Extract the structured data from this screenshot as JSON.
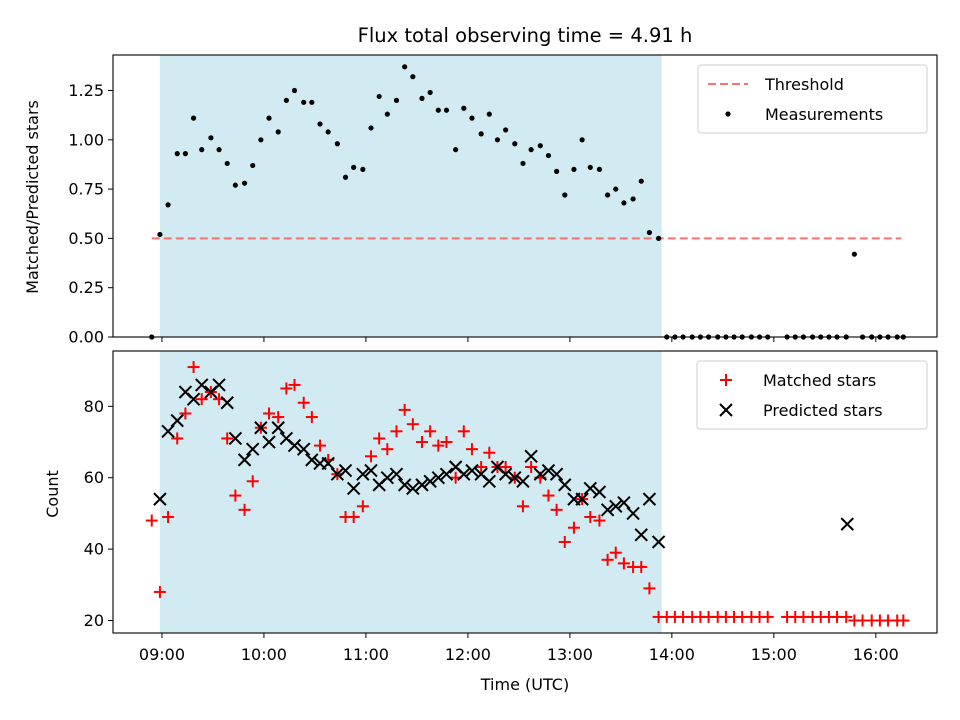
{
  "chart_data": [
    {
      "type": "scatter",
      "title": "Flux total observing time = 4.91 h",
      "xlabel": "",
      "ylabel": "Matched/Predicted stars",
      "xlim": [
        8.52,
        16.6
      ],
      "ylim": [
        0,
        1.43
      ],
      "xticks": [
        "09:00",
        "10:00",
        "11:00",
        "12:00",
        "13:00",
        "14:00",
        "15:00",
        "16:00"
      ],
      "yticks": [
        "0.00",
        "0.25",
        "0.50",
        "0.75",
        "1.00",
        "1.25"
      ],
      "shaded_span": [
        8.98,
        13.9
      ],
      "shaded_color": "#add8e6",
      "legend_position": "top-right",
      "threshold": {
        "name": "Threshold",
        "value": 0.5,
        "x_range": [
          8.9,
          16.25
        ],
        "color": "#ff7070"
      },
      "series": [
        {
          "name": "Measurements",
          "color": "#000000",
          "marker": "dot",
          "x": [
            8.9,
            8.98,
            9.06,
            9.15,
            9.23,
            9.31,
            9.39,
            9.48,
            9.56,
            9.64,
            9.72,
            9.81,
            9.89,
            9.97,
            10.05,
            10.14,
            10.22,
            10.3,
            10.39,
            10.47,
            10.55,
            10.63,
            10.72,
            10.8,
            10.88,
            10.97,
            11.05,
            11.13,
            11.21,
            11.3,
            11.38,
            11.46,
            11.55,
            11.63,
            11.71,
            11.79,
            11.88,
            11.96,
            12.04,
            12.13,
            12.21,
            12.29,
            12.37,
            12.46,
            12.54,
            12.62,
            12.71,
            12.79,
            12.87,
            12.95,
            13.04,
            13.12,
            13.2,
            13.29,
            13.37,
            13.45,
            13.53,
            13.62,
            13.7,
            13.78,
            13.87,
            13.95,
            14.03,
            14.11,
            14.2,
            14.28,
            14.36,
            14.45,
            14.53,
            14.61,
            14.69,
            14.78,
            14.86,
            14.94,
            15.13,
            15.21,
            15.29,
            15.38,
            15.46,
            15.54,
            15.62,
            15.71,
            15.79,
            15.87,
            15.96,
            16.04,
            16.12,
            16.21,
            16.27
          ],
          "y": [
            0.0,
            0.52,
            0.67,
            0.93,
            0.93,
            1.11,
            0.95,
            1.01,
            0.95,
            0.88,
            0.77,
            0.78,
            0.87,
            1.0,
            1.11,
            1.04,
            1.2,
            1.25,
            1.19,
            1.19,
            1.08,
            1.04,
            0.98,
            0.81,
            0.86,
            0.85,
            1.06,
            1.22,
            1.13,
            1.2,
            1.37,
            1.32,
            1.21,
            1.24,
            1.15,
            1.15,
            0.95,
            1.16,
            1.11,
            1.03,
            1.13,
            1.0,
            1.05,
            0.98,
            0.88,
            0.95,
            0.97,
            0.92,
            0.84,
            0.72,
            0.85,
            1.0,
            0.86,
            0.85,
            0.72,
            0.75,
            0.68,
            0.7,
            0.79,
            0.53,
            0.5,
            0.0,
            0.0,
            0.0,
            0.0,
            0.0,
            0.0,
            0.0,
            0.0,
            0.0,
            0.0,
            0.0,
            0.0,
            0.0,
            0.0,
            0.0,
            0.0,
            0.0,
            0.0,
            0.0,
            0.0,
            0.0,
            0.42,
            0.0,
            0.0,
            0.0,
            0.0,
            0.0,
            0.0
          ]
        }
      ]
    },
    {
      "type": "scatter",
      "title": "",
      "xlabel": "Time (UTC)",
      "ylabel": "Count",
      "xlim": [
        8.52,
        16.6
      ],
      "ylim": [
        16.5,
        95.5
      ],
      "xticks": [
        "09:00",
        "10:00",
        "11:00",
        "12:00",
        "13:00",
        "14:00",
        "15:00",
        "16:00"
      ],
      "yticks": [
        "20",
        "40",
        "60",
        "80"
      ],
      "shaded_span": [
        8.98,
        13.9
      ],
      "shaded_color": "#add8e6",
      "legend_position": "top-right",
      "series": [
        {
          "name": "Matched stars",
          "color": "#ff0000",
          "marker": "plus",
          "x": [
            8.9,
            8.98,
            9.06,
            9.15,
            9.23,
            9.31,
            9.39,
            9.48,
            9.56,
            9.64,
            9.72,
            9.81,
            9.89,
            9.97,
            10.05,
            10.14,
            10.22,
            10.3,
            10.39,
            10.47,
            10.55,
            10.63,
            10.72,
            10.8,
            10.88,
            10.97,
            11.05,
            11.13,
            11.21,
            11.3,
            11.38,
            11.46,
            11.55,
            11.63,
            11.71,
            11.79,
            11.88,
            11.96,
            12.04,
            12.13,
            12.21,
            12.29,
            12.37,
            12.46,
            12.54,
            12.62,
            12.71,
            12.79,
            12.87,
            12.95,
            13.04,
            13.12,
            13.2,
            13.29,
            13.37,
            13.45,
            13.53,
            13.62,
            13.7,
            13.78,
            13.87,
            13.95,
            14.03,
            14.11,
            14.2,
            14.28,
            14.36,
            14.45,
            14.53,
            14.61,
            14.69,
            14.78,
            14.86,
            14.94,
            15.13,
            15.21,
            15.29,
            15.38,
            15.46,
            15.54,
            15.62,
            15.71,
            15.79,
            15.87,
            15.96,
            16.04,
            16.12,
            16.21,
            16.27
          ],
          "y": [
            48,
            28,
            49,
            71,
            78,
            91,
            82,
            84,
            82,
            71,
            55,
            51,
            59,
            74,
            78,
            77,
            85,
            86,
            81,
            77,
            69,
            65,
            61,
            49,
            49,
            52,
            66,
            71,
            68,
            73,
            79,
            75,
            70,
            73,
            69,
            70,
            60,
            73,
            68,
            63,
            67,
            63,
            63,
            60,
            52,
            63,
            60,
            55,
            51,
            42,
            46,
            54,
            49,
            48,
            37,
            39,
            36,
            35,
            35,
            29,
            21,
            21,
            21,
            21,
            21,
            21,
            21,
            21,
            21,
            21,
            21,
            21,
            21,
            21,
            21,
            21,
            21,
            21,
            21,
            21,
            21,
            21,
            20,
            20,
            20,
            20,
            20,
            20,
            20
          ]
        },
        {
          "name": "Predicted stars",
          "color": "#000000",
          "marker": "x",
          "x": [
            8.98,
            9.06,
            9.15,
            9.23,
            9.31,
            9.39,
            9.48,
            9.56,
            9.64,
            9.72,
            9.81,
            9.89,
            9.97,
            10.05,
            10.14,
            10.22,
            10.3,
            10.39,
            10.47,
            10.55,
            10.63,
            10.72,
            10.8,
            10.88,
            10.97,
            11.05,
            11.13,
            11.21,
            11.3,
            11.38,
            11.46,
            11.55,
            11.63,
            11.71,
            11.79,
            11.88,
            11.96,
            12.04,
            12.13,
            12.21,
            12.29,
            12.37,
            12.46,
            12.54,
            12.62,
            12.71,
            12.79,
            12.87,
            12.95,
            13.04,
            13.12,
            13.2,
            13.29,
            13.37,
            13.45,
            13.53,
            13.62,
            13.7,
            13.78,
            13.87,
            15.72
          ],
          "y": [
            54,
            73,
            76,
            84,
            82,
            86,
            84,
            86,
            81,
            71,
            65,
            68,
            74,
            70,
            74,
            71,
            69,
            68,
            65,
            64,
            64,
            61,
            62,
            57,
            61,
            62,
            58,
            60,
            61,
            58,
            57,
            58,
            59,
            60,
            61,
            63,
            61,
            62,
            61,
            59,
            63,
            61,
            60,
            59,
            66,
            61,
            62,
            61,
            58,
            54,
            54,
            57,
            56,
            51,
            52,
            53,
            50,
            44,
            54,
            42,
            47
          ]
        }
      ]
    }
  ]
}
